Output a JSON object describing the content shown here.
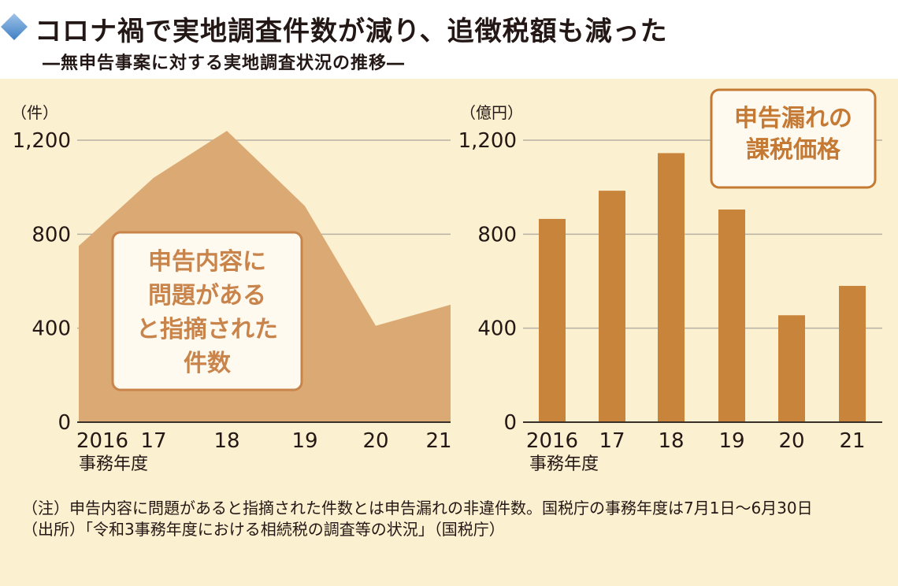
{
  "header": {
    "title": "コロナ禍で実地調査件数が減り、追徴税額も減った",
    "subtitle": "―無申告事案に対する実地調査状況の推移―",
    "accent_color": "#4a8ad0",
    "icon": "diamond-icon"
  },
  "chart_data": [
    {
      "type": "area",
      "ylabel": "（件）",
      "xlabel": "事務年度",
      "categories": [
        "2016",
        "17",
        "18",
        "19",
        "20",
        "21"
      ],
      "values": [
        750,
        1040,
        1240,
        920,
        410,
        500
      ],
      "ylim": [
        0,
        1200
      ],
      "yticks": [
        "0",
        "400",
        "800",
        "1,200"
      ],
      "grid": true,
      "color": "#dba973",
      "annotation": [
        "申告内容に",
        "問題がある",
        "と指摘された",
        "件数"
      ],
      "annotation_color": "#c8844a"
    },
    {
      "type": "bar",
      "ylabel": "（億円）",
      "xlabel": "事務年度",
      "categories": [
        "2016",
        "17",
        "18",
        "19",
        "20",
        "21"
      ],
      "values": [
        865,
        985,
        1145,
        905,
        455,
        580
      ],
      "ylim": [
        0,
        1200
      ],
      "yticks": [
        "0",
        "400",
        "800",
        "1,200"
      ],
      "grid": true,
      "color": "#c9843c",
      "annotation": [
        "申告漏れの",
        "課税価格"
      ],
      "annotation_color": "#c47a34"
    }
  ],
  "notes": {
    "note": "（注）申告内容に問題があると指摘された件数とは申告漏れの非違件数。国税庁の事務年度は7月1日～6月30日",
    "source": "（出所）「令和3事務年度における相続税の調査等の状況」（国税庁）"
  },
  "colors": {
    "background": "#fbf0cf",
    "grid": "#b7b1a6",
    "text": "#231815"
  }
}
